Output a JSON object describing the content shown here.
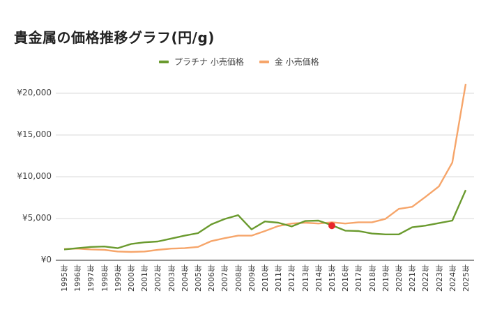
{
  "chart_data": {
    "type": "line",
    "title": "貴金属の価格推移グラフ(円/g)",
    "xlabel": "",
    "ylabel": "",
    "ylim": [
      0,
      21000
    ],
    "grid": true,
    "legend_position": "top",
    "x": [
      "1995年",
      "1996年",
      "1997年",
      "1998年",
      "1999年",
      "2000年",
      "2001年",
      "2002年",
      "2003年",
      "2004年",
      "2005年",
      "2006年",
      "2007年",
      "2008年",
      "2009年",
      "2010年",
      "2011年",
      "2012年",
      "2013年",
      "2014年",
      "2015年",
      "2016年",
      "2017年",
      "2018年",
      "2019年",
      "2020年",
      "2021年",
      "2022年",
      "2023年",
      "2024年",
      "2025年"
    ],
    "yticks": [
      "¥0",
      "¥5,000",
      "¥10,000",
      "¥15,000",
      "¥20,000"
    ],
    "ytick_values": [
      0,
      5000,
      10000,
      15000,
      20000
    ],
    "series": [
      {
        "name": "プラチナ 小売価格",
        "color": "#6a9a2e",
        "values": [
          1300,
          1450,
          1600,
          1650,
          1450,
          1950,
          2150,
          2250,
          2600,
          2950,
          3250,
          4300,
          4950,
          5400,
          3700,
          4650,
          4500,
          4050,
          4700,
          4750,
          4200,
          3550,
          3500,
          3200,
          3100,
          3100,
          3950,
          4150,
          4450,
          4750,
          8400
        ]
      },
      {
        "name": "金 小売価格",
        "color": "#f6a56a",
        "values": [
          1350,
          1400,
          1300,
          1250,
          1050,
          1000,
          1050,
          1250,
          1400,
          1450,
          1600,
          2300,
          2650,
          2950,
          2950,
          3500,
          4100,
          4400,
          4500,
          4400,
          4550,
          4400,
          4550,
          4550,
          4950,
          6150,
          6400,
          7600,
          8850,
          11700,
          21100
        ]
      }
    ],
    "annotations": [
      {
        "type": "marker",
        "x": "2015年",
        "y": 4150,
        "color": "#e8262a"
      }
    ]
  }
}
